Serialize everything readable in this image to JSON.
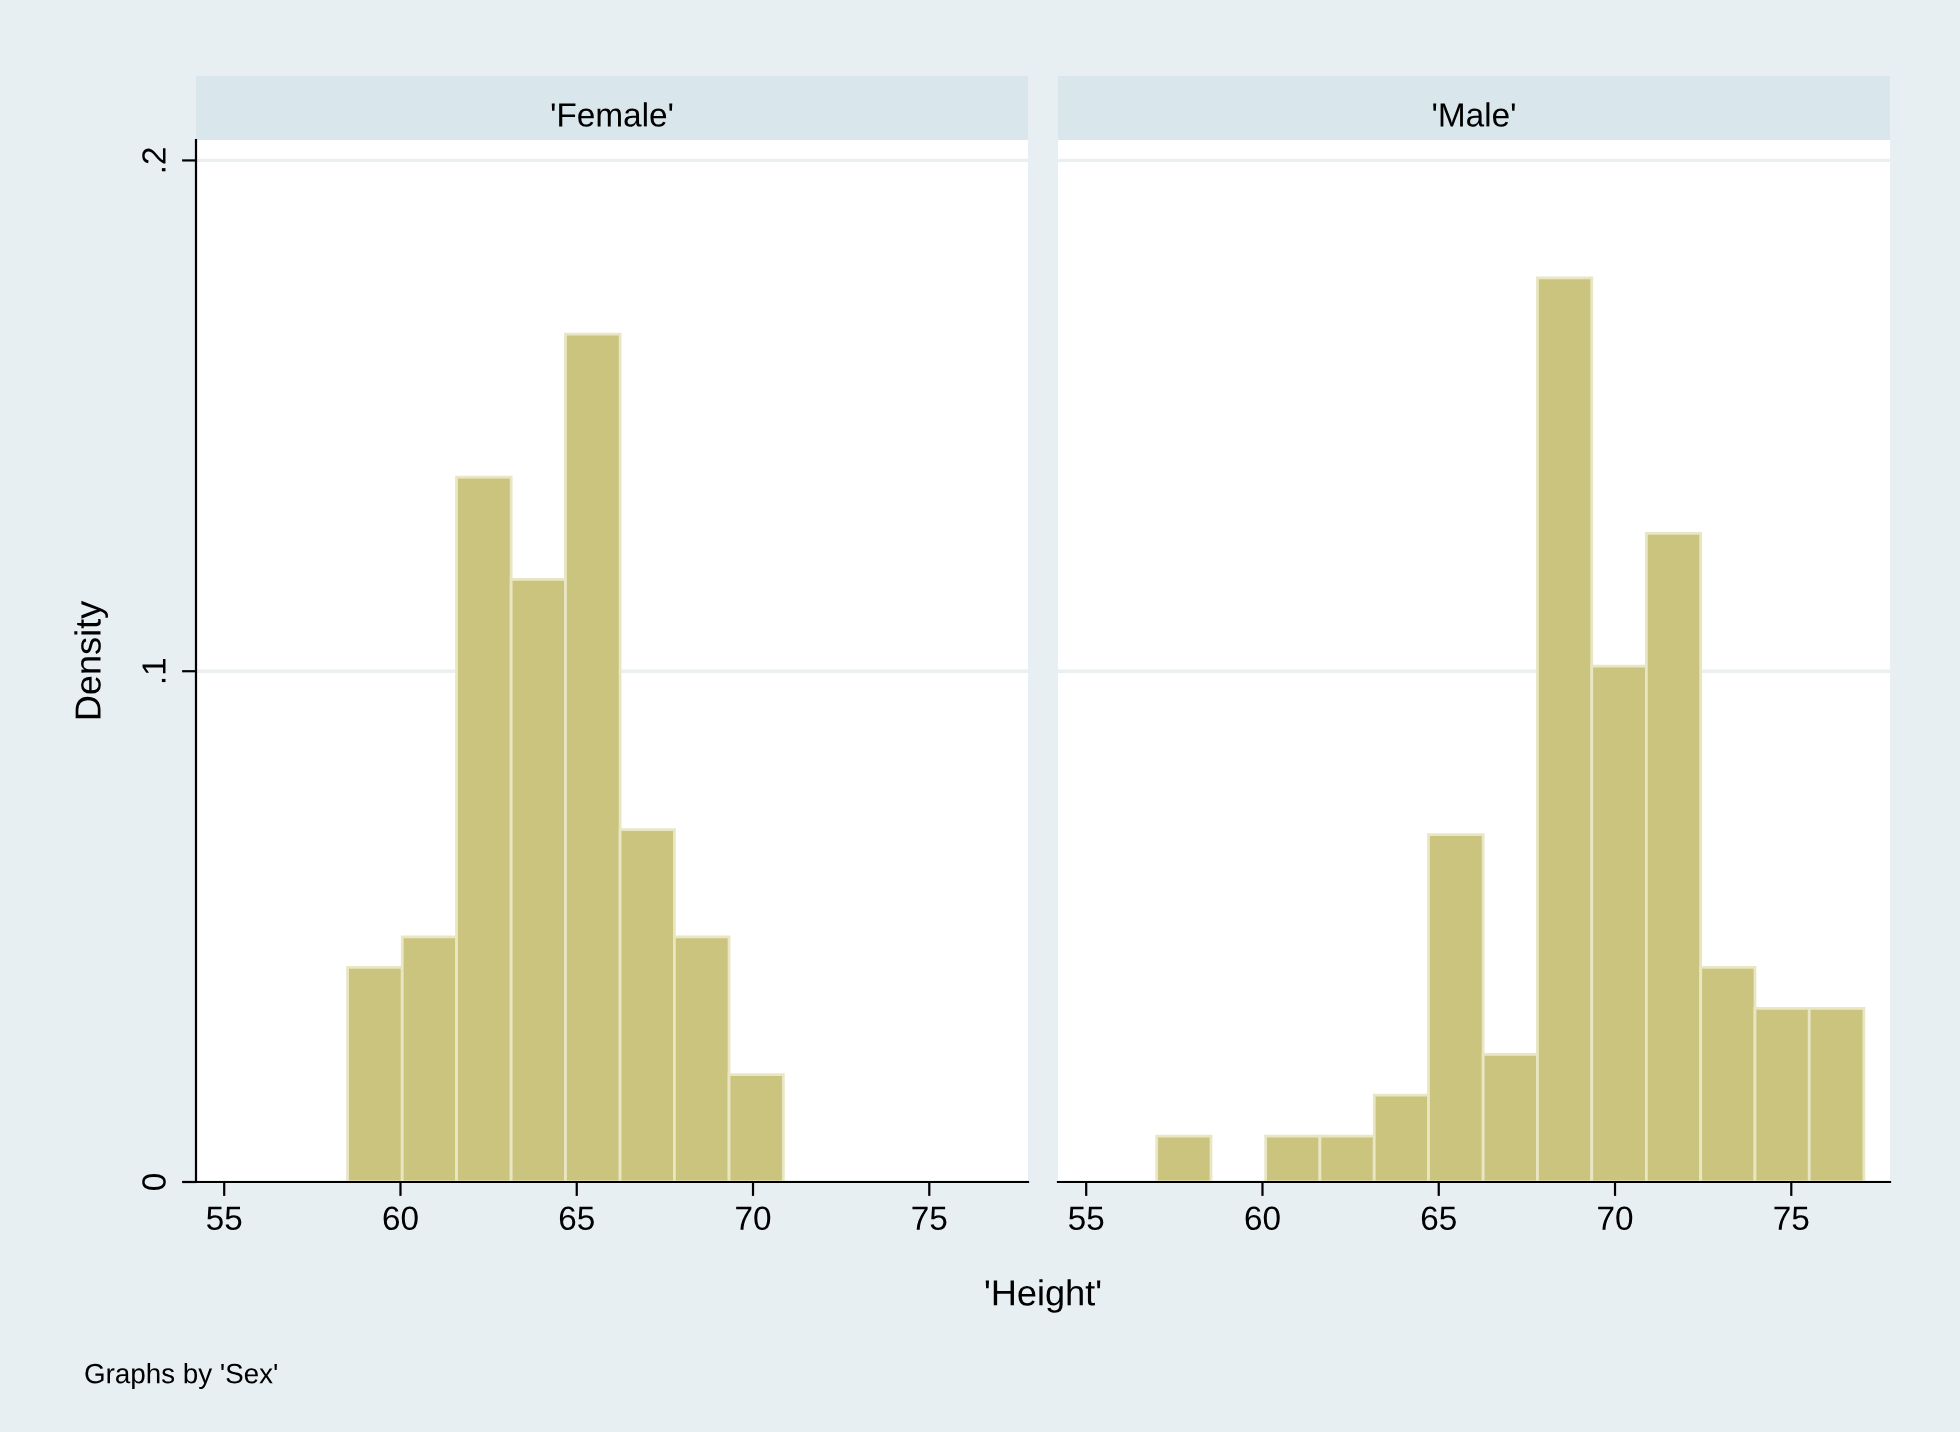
{
  "chart_data": [
    {
      "type": "histogram",
      "title": "'Female'",
      "ylabel": "Density",
      "xlabel": "'Height'",
      "annotations": [
        "Graphs by 'Sex'"
      ],
      "color": "#cbc47f",
      "bins": [
        58.5,
        60.05,
        61.59,
        63.14,
        64.68,
        66.23,
        67.77,
        69.32,
        70.86
      ],
      "values": [
        0.042,
        0.048,
        0.138,
        0.118,
        0.166,
        0.069,
        0.048,
        0.021
      ],
      "xlim": [
        54.2,
        77.8
      ],
      "xticks": [
        55,
        60,
        65,
        70,
        75
      ],
      "ylim": [
        0,
        0.204
      ],
      "yticks": [
        0,
        {
          "value": 0.1,
          "label": ".1"
        },
        {
          "value": 0.2,
          "label": ".2"
        }
      ],
      "grid": "y"
    },
    {
      "type": "histogram",
      "title": "'Male'",
      "color": "#cbc47f",
      "bins": [
        57.0,
        58.54,
        60.09,
        61.63,
        63.17,
        64.71,
        66.26,
        67.8,
        69.34,
        70.89,
        72.43,
        73.97,
        75.51,
        77.06
      ],
      "values": [
        0.009,
        0,
        0.009,
        0.009,
        0.017,
        0.068,
        0.025,
        0.177,
        0.101,
        0.127,
        0.042,
        0.034,
        0.034
      ],
      "xlim": [
        54.2,
        77.8
      ],
      "xticks": [
        55,
        60,
        65,
        70,
        75
      ],
      "ylim": [
        0,
        0.204
      ],
      "yticks": [
        {
          "value": 0,
          "label": null
        },
        {
          "value": 0.1,
          "label": null
        },
        {
          "value": 0.2,
          "label": null
        }
      ],
      "grid": "y",
      "tick_labels": "x"
    }
  ]
}
